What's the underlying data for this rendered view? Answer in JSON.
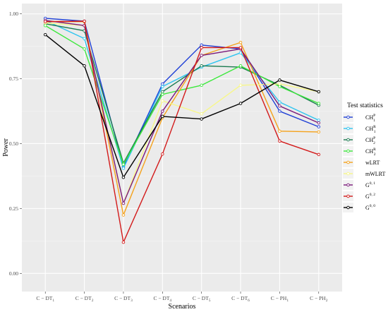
{
  "chart_data": {
    "type": "line",
    "xlabel": "Scenarios",
    "ylabel": "Power",
    "ylim": [
      -0.07,
      1.04
    ],
    "yticks": [
      0.0,
      0.25,
      0.5,
      0.75,
      1.0
    ],
    "ytick_labels": [
      "0.00",
      "0.25",
      "0.50",
      "0.75",
      "1.00"
    ],
    "categories": [
      {
        "base": "C − DT",
        "sub": "1"
      },
      {
        "base": "C − DT",
        "sub": "2"
      },
      {
        "base": "C − DT",
        "sub": "3"
      },
      {
        "base": "C − DT",
        "sub": "4"
      },
      {
        "base": "C − DT",
        "sub": "5"
      },
      {
        "base": "C − DT",
        "sub": "6"
      },
      {
        "base": "C − PH",
        "sub": "1"
      },
      {
        "base": "C − PH",
        "sub": "2"
      }
    ],
    "grid": true,
    "legend_title": "Test statistics",
    "legend_position": "right",
    "series": [
      {
        "base": "CH",
        "sup": "P",
        "sub": "1",
        "color": "#1f3fd6",
        "values": [
          0.983,
          0.972,
          0.41,
          0.73,
          0.88,
          0.865,
          0.625,
          0.565
        ]
      },
      {
        "base": "CH",
        "sup": "R",
        "sub": "1",
        "color": "#2ec4f0",
        "values": [
          0.975,
          0.905,
          0.405,
          0.72,
          0.795,
          0.85,
          0.66,
          0.59
        ]
      },
      {
        "base": "CH",
        "sup": "P",
        "sub": "2",
        "color": "#1a7a50",
        "values": [
          0.962,
          0.935,
          0.425,
          0.7,
          0.8,
          0.795,
          0.725,
          0.648
        ]
      },
      {
        "base": "CH",
        "sup": "R",
        "sub": "2",
        "color": "#3de83d",
        "values": [
          0.955,
          0.865,
          0.42,
          0.69,
          0.725,
          0.8,
          0.72,
          0.655
        ]
      },
      {
        "base": "wLRT",
        "color": "#f5a21b",
        "values": [
          0.97,
          0.97,
          0.225,
          0.6,
          0.84,
          0.89,
          0.548,
          0.545
        ]
      },
      {
        "base": "mWLRT",
        "color": "#f7f78a",
        "values": [
          0.965,
          0.955,
          0.27,
          0.665,
          0.615,
          0.725,
          0.73,
          0.7
        ]
      },
      {
        "base": "G",
        "sup": "0, 1",
        "color": "#7b1a7b",
        "values": [
          0.975,
          0.955,
          0.27,
          0.625,
          0.84,
          0.865,
          0.645,
          0.58
        ]
      },
      {
        "base": "G",
        "sup": "0, 2",
        "color": "#d31a1a",
        "values": [
          0.97,
          0.972,
          0.12,
          0.46,
          0.87,
          0.87,
          0.51,
          0.458
        ]
      },
      {
        "base": "G",
        "sup": "0, 0",
        "color": "#000000",
        "values": [
          0.92,
          0.8,
          0.37,
          0.605,
          0.595,
          0.655,
          0.745,
          0.7
        ]
      }
    ]
  }
}
